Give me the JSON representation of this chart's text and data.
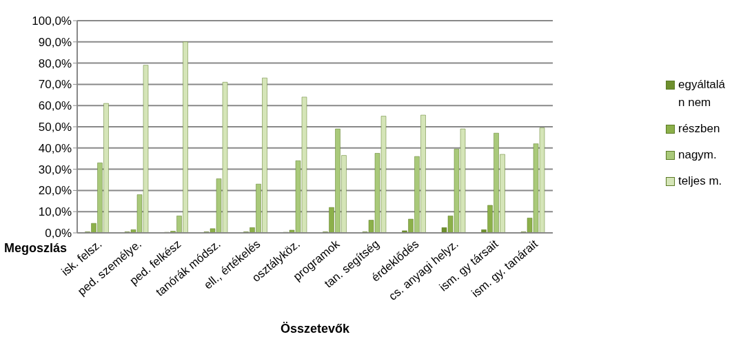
{
  "chart_data": {
    "type": "bar",
    "xlabel": "Összetevők",
    "ylabel": "Megoszlás",
    "categories": [
      "isk. felsz.",
      "ped. személye.",
      "ped. felkész",
      "tanórák módsz.",
      "ell., értékelés",
      "osztályköz.",
      "programok",
      "tan. segítség",
      "érdeklődés",
      "cs. anyagi helyz.",
      "ism. gy társait",
      "ism. gy. tanárait"
    ],
    "series": [
      {
        "name": "egyáltalán nem",
        "color": "#6e8f2e",
        "values": [
          0.5,
          0.5,
          0.3,
          0.5,
          0.5,
          0.3,
          0.5,
          0.5,
          1,
          2.5,
          1.5,
          0.5
        ]
      },
      {
        "name": "részben",
        "color": "#8cb04a",
        "values": [
          4.5,
          1.5,
          0.8,
          2,
          2.5,
          1.3,
          12,
          6,
          6.5,
          8,
          13,
          7
        ]
      },
      {
        "name": "nagym.",
        "color": "#a9c97a",
        "values": [
          33,
          18,
          8,
          25.5,
          23,
          34,
          49,
          37.5,
          36,
          39.5,
          47,
          42
        ]
      },
      {
        "name": "teljes m.",
        "color": "#d5e5b8",
        "values": [
          61,
          79,
          90,
          71,
          73,
          64,
          36.5,
          55,
          55.5,
          49,
          37,
          49.5
        ]
      }
    ],
    "ylim": [
      0,
      100
    ],
    "yticks": [
      {
        "value": 0,
        "label": "0,0%"
      },
      {
        "value": 10,
        "label": "10,0%"
      },
      {
        "value": 20,
        "label": "20,0%"
      },
      {
        "value": 30,
        "label": "30,0%"
      },
      {
        "value": 40,
        "label": "40,0%"
      },
      {
        "value": 50,
        "label": "50,0%"
      },
      {
        "value": 60,
        "label": "60,0%"
      },
      {
        "value": 70,
        "label": "70,0%"
      },
      {
        "value": 80,
        "label": "80,0%"
      },
      {
        "value": 90,
        "label": "90,0%"
      },
      {
        "value": 100,
        "label": "100,0%"
      }
    ],
    "grid": "y",
    "legend": "right"
  }
}
